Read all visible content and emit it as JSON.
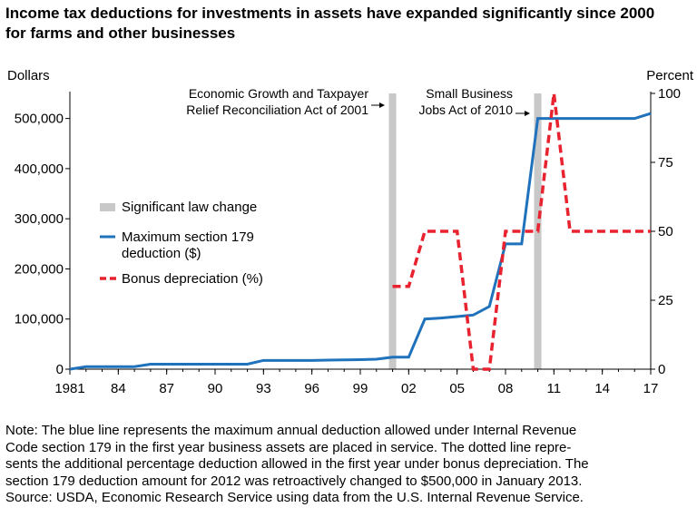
{
  "title_lines": [
    "Income tax deductions for investments in assets have expanded significantly since 2000",
    "for farms and other businesses"
  ],
  "note_lines": [
    "Note: The blue line represents the maximum annual deduction allowed under Internal Revenue",
    "Code section 179 in the first year business assets are placed in service. The dotted line repre-",
    "sents the additional percentage deduction allowed in the first year under bonus depreciation. The",
    "section 179 deduction amount for 2012 was retroactively changed to $500,000 in January 2013.",
    "Source: USDA, Economic Research Service using data from the U.S. Internal Revenue Service."
  ],
  "colors": {
    "section179": "#1f72bb",
    "bonus": "#e8232f",
    "law_bar": "#c8c8c8",
    "axis": "#000000"
  },
  "chart_data": {
    "type": "line",
    "xlim": [
      1981,
      2017
    ],
    "x_ticks": [
      {
        "x": 1981,
        "label": "1981"
      },
      {
        "x": 1984,
        "label": "84"
      },
      {
        "x": 1987,
        "label": "87"
      },
      {
        "x": 1990,
        "label": "90"
      },
      {
        "x": 1993,
        "label": "93"
      },
      {
        "x": 1996,
        "label": "96"
      },
      {
        "x": 1999,
        "label": "99"
      },
      {
        "x": 2002,
        "label": "02"
      },
      {
        "x": 2005,
        "label": "05"
      },
      {
        "x": 2008,
        "label": "08"
      },
      {
        "x": 2011,
        "label": "11"
      },
      {
        "x": 2014,
        "label": "14"
      },
      {
        "x": 2017,
        "label": "17"
      }
    ],
    "y_left": {
      "label": "Dollars",
      "ylim": [
        0,
        550000
      ],
      "ticks": [
        {
          "v": 0,
          "label": "0"
        },
        {
          "v": 100000,
          "label": "100,000"
        },
        {
          "v": 200000,
          "label": "200,000"
        },
        {
          "v": 300000,
          "label": "300,000"
        },
        {
          "v": 400000,
          "label": "400,000"
        },
        {
          "v": 500000,
          "label": "500,000"
        }
      ]
    },
    "y_right": {
      "label": "Percent",
      "ylim": [
        0,
        100
      ],
      "ticks": [
        {
          "v": 0,
          "label": "0"
        },
        {
          "v": 25,
          "label": "25"
        },
        {
          "v": 50,
          "label": "50"
        },
        {
          "v": 75,
          "label": "75"
        },
        {
          "v": 100,
          "label": "100"
        }
      ]
    },
    "law_changes": [
      {
        "x": 2001,
        "label_lines": [
          "Economic Growth and Taxpayer",
          "Relief Reconciliation Act of 2001"
        ]
      },
      {
        "x": 2010,
        "label_lines": [
          "Small Business",
          "Jobs Act of 2010"
        ]
      }
    ],
    "legend": [
      {
        "kind": "bar",
        "lines": [
          "Significant law change"
        ]
      },
      {
        "kind": "solid",
        "lines": [
          "Maximum section 179",
          "deduction ($)"
        ]
      },
      {
        "kind": "dashed",
        "lines": [
          "Bonus depreciation (%)"
        ]
      }
    ],
    "series": [
      {
        "name": "Maximum section 179 deduction ($)",
        "axis": "left",
        "style": "solid",
        "points": [
          [
            1981,
            0
          ],
          [
            1982,
            5000
          ],
          [
            1983,
            5000
          ],
          [
            1984,
            5000
          ],
          [
            1985,
            5000
          ],
          [
            1986,
            10000
          ],
          [
            1987,
            10000
          ],
          [
            1988,
            10000
          ],
          [
            1989,
            10000
          ],
          [
            1990,
            10000
          ],
          [
            1991,
            10000
          ],
          [
            1992,
            10000
          ],
          [
            1993,
            17500
          ],
          [
            1994,
            17500
          ],
          [
            1995,
            17500
          ],
          [
            1996,
            17500
          ],
          [
            1997,
            18000
          ],
          [
            1998,
            18500
          ],
          [
            1999,
            19000
          ],
          [
            2000,
            20000
          ],
          [
            2001,
            24000
          ],
          [
            2002,
            24000
          ],
          [
            2003,
            100000
          ],
          [
            2004,
            102000
          ],
          [
            2005,
            105000
          ],
          [
            2006,
            108000
          ],
          [
            2007,
            125000
          ],
          [
            2008,
            250000
          ],
          [
            2009,
            250000
          ],
          [
            2010,
            500000
          ],
          [
            2011,
            500000
          ],
          [
            2012,
            500000
          ],
          [
            2013,
            500000
          ],
          [
            2014,
            500000
          ],
          [
            2015,
            500000
          ],
          [
            2016,
            500000
          ],
          [
            2017,
            510000
          ]
        ]
      },
      {
        "name": "Bonus depreciation (%)",
        "axis": "right",
        "style": "dashed",
        "points": [
          [
            2001,
            30
          ],
          [
            2002,
            30
          ],
          [
            2003,
            50
          ],
          [
            2004,
            50
          ],
          [
            2005,
            50
          ],
          [
            2006,
            0
          ],
          [
            2007,
            0
          ],
          [
            2008,
            50
          ],
          [
            2009,
            50
          ],
          [
            2010,
            50
          ],
          [
            2011,
            100
          ],
          [
            2012,
            50
          ],
          [
            2013,
            50
          ],
          [
            2014,
            50
          ],
          [
            2015,
            50
          ],
          [
            2016,
            50
          ],
          [
            2017,
            50
          ]
        ]
      }
    ]
  }
}
